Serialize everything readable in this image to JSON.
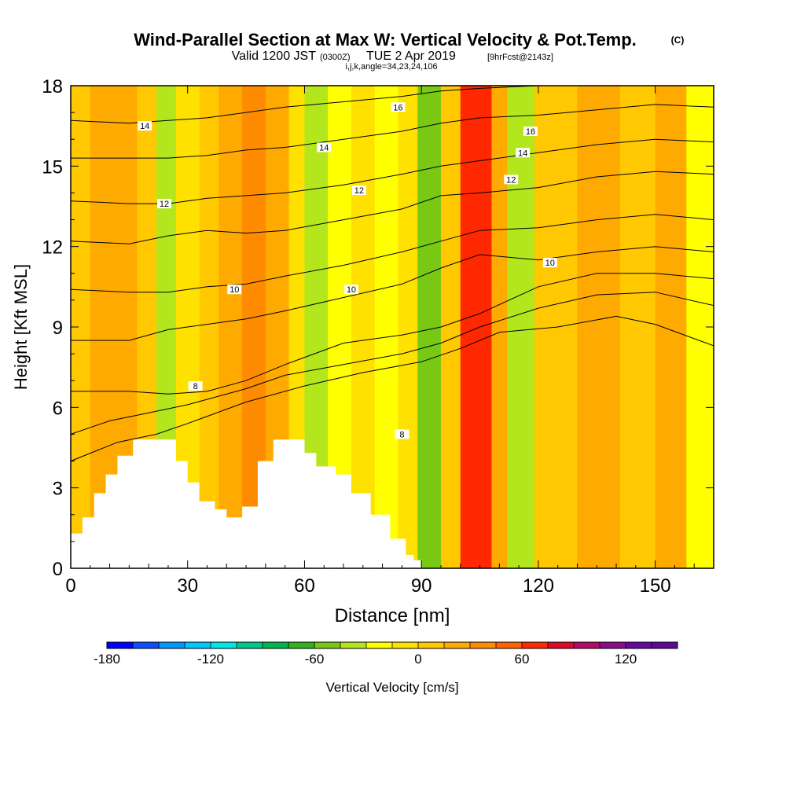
{
  "chart_data": {
    "type": "heatmap",
    "title": "Wind-Parallel Section at Max W: Vertical Velocity & Pot.Temp.",
    "title_mark": "(C)",
    "subtitle": {
      "valid": "Valid 1200 JST",
      "utc": "(0300Z)",
      "date": "TUE 2 Apr 2019",
      "forecast": "[9hrFcst@2143z]"
    },
    "indices_line": "i,j,k,angle=34,23,24,106",
    "xlabel": "Distance [nm]",
    "ylabel": "Height [Kft MSL]",
    "xlim": [
      0,
      165
    ],
    "ylim": [
      0,
      18
    ],
    "x_ticks": [
      "0",
      "30",
      "60",
      "90",
      "120",
      "150"
    ],
    "y_ticks": [
      "0",
      "3",
      "6",
      "9",
      "12",
      "15",
      "18"
    ],
    "colorbar": {
      "label": "Vertical Velocity [cm/s]",
      "min": -180,
      "max": 150,
      "step": 15,
      "tick_labels": [
        "-180",
        "-120",
        "-60",
        "0",
        "60",
        "120"
      ],
      "colors": [
        "#0000ff",
        "#0a50ff",
        "#0096ff",
        "#00c8ff",
        "#00e6e6",
        "#00c88c",
        "#00b450",
        "#32b41e",
        "#78c814",
        "#b4e61e",
        "#ffff00",
        "#ffe100",
        "#ffc800",
        "#ffaa00",
        "#ff8c00",
        "#ff6400",
        "#ff2800",
        "#dc0a28",
        "#b40a64",
        "#8c0a8c",
        "#640aa0",
        "#5a0a96"
      ]
    },
    "velocity_bands": [
      {
        "x": [
          0,
          5
        ],
        "value": 10
      },
      {
        "x": [
          5,
          17
        ],
        "value": 20
      },
      {
        "x": [
          17,
          22
        ],
        "value": 0
      },
      {
        "x": [
          22,
          27
        ],
        "value": -45
      },
      {
        "x": [
          27,
          33
        ],
        "value": -15
      },
      {
        "x": [
          33,
          38
        ],
        "value": 5
      },
      {
        "x": [
          38,
          44
        ],
        "value": 25
      },
      {
        "x": [
          44,
          50
        ],
        "value": 40
      },
      {
        "x": [
          50,
          56
        ],
        "value": 20
      },
      {
        "x": [
          56,
          60
        ],
        "value": -5
      },
      {
        "x": [
          60,
          66
        ],
        "value": -35
      },
      {
        "x": [
          66,
          72
        ],
        "value": -20
      },
      {
        "x": [
          72,
          78
        ],
        "value": -10
      },
      {
        "x": [
          78,
          84
        ],
        "value": -25
      },
      {
        "x": [
          84,
          89
        ],
        "value": -15
      },
      {
        "x": [
          89,
          95
        ],
        "value": -55
      },
      {
        "x": [
          95,
          100
        ],
        "value": 10
      },
      {
        "x": [
          100,
          108
        ],
        "value": 65
      },
      {
        "x": [
          108,
          112
        ],
        "value": 20
      },
      {
        "x": [
          112,
          119
        ],
        "value": -40
      },
      {
        "x": [
          119,
          130
        ],
        "value": 5
      },
      {
        "x": [
          130,
          141
        ],
        "value": 15
      },
      {
        "x": [
          141,
          150
        ],
        "value": 5
      },
      {
        "x": [
          150,
          158
        ],
        "value": 15
      },
      {
        "x": [
          158,
          165
        ],
        "value": -20
      }
    ],
    "terrain_kft": [
      [
        0,
        1.3
      ],
      [
        3,
        1.9
      ],
      [
        6,
        2.8
      ],
      [
        9,
        3.5
      ],
      [
        12,
        4.2
      ],
      [
        16,
        4.8
      ],
      [
        25,
        4.8
      ],
      [
        27,
        4.0
      ],
      [
        30,
        3.2
      ],
      [
        33,
        2.5
      ],
      [
        37,
        2.2
      ],
      [
        40,
        1.9
      ],
      [
        44,
        2.3
      ],
      [
        48,
        4.0
      ],
      [
        52,
        4.8
      ],
      [
        56,
        4.8
      ],
      [
        60,
        4.3
      ],
      [
        63,
        3.8
      ],
      [
        68,
        3.5
      ],
      [
        72,
        2.8
      ],
      [
        77,
        2.0
      ],
      [
        82,
        1.1
      ],
      [
        86,
        0.5
      ],
      [
        88,
        0.3
      ],
      [
        90,
        0.0
      ]
    ],
    "isentropes": [
      {
        "label": "8",
        "points": [
          [
            0,
            4.0
          ],
          [
            12,
            4.7
          ],
          [
            22,
            5.0
          ],
          [
            30,
            5.4
          ],
          [
            45,
            6.2
          ],
          [
            60,
            6.8
          ],
          [
            75,
            7.3
          ],
          [
            90,
            7.7
          ],
          [
            100,
            8.2
          ],
          [
            110,
            8.8
          ],
          [
            125,
            9.0
          ],
          [
            140,
            9.4
          ],
          [
            150,
            9.1
          ],
          [
            165,
            8.3
          ]
        ]
      },
      {
        "label": "8",
        "points": [
          [
            0,
            5.0
          ],
          [
            10,
            5.5
          ],
          [
            20,
            5.8
          ],
          [
            30,
            6.1
          ],
          [
            45,
            6.7
          ],
          [
            55,
            7.2
          ],
          [
            70,
            7.6
          ],
          [
            85,
            8.0
          ],
          [
            95,
            8.4
          ],
          [
            105,
            9.0
          ],
          [
            120,
            9.7
          ],
          [
            135,
            10.2
          ],
          [
            150,
            10.3
          ],
          [
            165,
            9.8
          ]
        ]
      },
      {
        "label": "8",
        "points": [
          [
            0,
            6.6
          ],
          [
            15,
            6.6
          ],
          [
            25,
            6.5
          ],
          [
            35,
            6.6
          ],
          [
            45,
            7.0
          ],
          [
            55,
            7.6
          ],
          [
            70,
            8.4
          ],
          [
            85,
            8.7
          ],
          [
            95,
            9.0
          ],
          [
            105,
            9.5
          ],
          [
            120,
            10.5
          ],
          [
            135,
            11.0
          ],
          [
            150,
            11.0
          ],
          [
            165,
            10.8
          ]
        ]
      },
      {
        "label": "10",
        "points": [
          [
            0,
            8.5
          ],
          [
            15,
            8.5
          ],
          [
            25,
            8.9
          ],
          [
            35,
            9.1
          ],
          [
            45,
            9.3
          ],
          [
            55,
            9.6
          ],
          [
            70,
            10.1
          ],
          [
            85,
            10.6
          ],
          [
            95,
            11.2
          ],
          [
            105,
            11.7
          ],
          [
            120,
            11.5
          ],
          [
            135,
            11.8
          ],
          [
            150,
            12.0
          ],
          [
            165,
            11.8
          ]
        ]
      },
      {
        "label": "10",
        "points": [
          [
            0,
            10.4
          ],
          [
            15,
            10.3
          ],
          [
            25,
            10.3
          ],
          [
            35,
            10.5
          ],
          [
            45,
            10.6
          ],
          [
            55,
            10.9
          ],
          [
            70,
            11.3
          ],
          [
            85,
            11.8
          ],
          [
            95,
            12.2
          ],
          [
            105,
            12.6
          ],
          [
            120,
            12.7
          ],
          [
            135,
            13.0
          ],
          [
            150,
            13.2
          ],
          [
            165,
            13.0
          ]
        ]
      },
      {
        "label": "12",
        "points": [
          [
            0,
            12.2
          ],
          [
            15,
            12.1
          ],
          [
            25,
            12.4
          ],
          [
            35,
            12.6
          ],
          [
            45,
            12.5
          ],
          [
            55,
            12.6
          ],
          [
            70,
            13.0
          ],
          [
            85,
            13.4
          ],
          [
            95,
            13.9
          ],
          [
            105,
            14.0
          ],
          [
            120,
            14.2
          ],
          [
            135,
            14.6
          ],
          [
            150,
            14.8
          ],
          [
            165,
            14.7
          ]
        ]
      },
      {
        "label": "12",
        "points": [
          [
            0,
            13.7
          ],
          [
            15,
            13.6
          ],
          [
            25,
            13.6
          ],
          [
            35,
            13.8
          ],
          [
            45,
            13.9
          ],
          [
            55,
            14.0
          ],
          [
            70,
            14.3
          ],
          [
            85,
            14.7
          ],
          [
            95,
            15.0
          ],
          [
            105,
            15.2
          ],
          [
            120,
            15.5
          ],
          [
            135,
            15.8
          ],
          [
            150,
            16.0
          ],
          [
            165,
            15.9
          ]
        ]
      },
      {
        "label": "14",
        "points": [
          [
            0,
            15.3
          ],
          [
            15,
            15.3
          ],
          [
            25,
            15.3
          ],
          [
            35,
            15.4
          ],
          [
            45,
            15.6
          ],
          [
            55,
            15.7
          ],
          [
            70,
            16.0
          ],
          [
            85,
            16.3
          ],
          [
            95,
            16.6
          ],
          [
            105,
            16.8
          ],
          [
            120,
            16.9
          ],
          [
            135,
            17.1
          ],
          [
            150,
            17.3
          ],
          [
            165,
            17.2
          ]
        ]
      },
      {
        "label": "14",
        "points": [
          [
            0,
            16.7
          ],
          [
            15,
            16.6
          ],
          [
            25,
            16.7
          ],
          [
            35,
            16.8
          ],
          [
            45,
            17.0
          ],
          [
            55,
            17.2
          ],
          [
            70,
            17.4
          ],
          [
            85,
            17.6
          ],
          [
            95,
            17.8
          ],
          [
            105,
            17.9
          ],
          [
            120,
            18.0
          ]
        ]
      }
    ],
    "contour_labels": [
      {
        "text": "14",
        "x": 19,
        "y": 16.5
      },
      {
        "text": "12",
        "x": 24,
        "y": 13.6
      },
      {
        "text": "10",
        "x": 42,
        "y": 10.4
      },
      {
        "text": "8",
        "x": 32,
        "y": 6.8
      },
      {
        "text": "14",
        "x": 65,
        "y": 15.7
      },
      {
        "text": "12",
        "x": 74,
        "y": 14.1
      },
      {
        "text": "10",
        "x": 72,
        "y": 10.4
      },
      {
        "text": "16",
        "x": 84,
        "y": 17.2
      },
      {
        "text": "8",
        "x": 85,
        "y": 5.0
      },
      {
        "text": "16",
        "x": 118,
        "y": 16.3
      },
      {
        "text": "14",
        "x": 116,
        "y": 15.5
      },
      {
        "text": "12",
        "x": 113,
        "y": 14.5
      },
      {
        "text": "10",
        "x": 123,
        "y": 11.4
      }
    ]
  }
}
